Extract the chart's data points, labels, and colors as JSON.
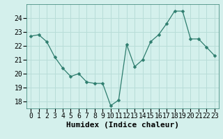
{
  "x": [
    0,
    1,
    2,
    3,
    4,
    5,
    6,
    7,
    8,
    9,
    10,
    11,
    12,
    13,
    14,
    15,
    16,
    17,
    18,
    19,
    20,
    21,
    22,
    23
  ],
  "y": [
    22.7,
    22.8,
    22.3,
    21.2,
    20.4,
    19.8,
    20.0,
    19.4,
    19.3,
    19.3,
    17.7,
    18.1,
    22.1,
    20.5,
    21.0,
    22.3,
    22.8,
    23.6,
    24.5,
    24.5,
    22.5,
    22.5,
    21.9,
    21.3
  ],
  "xlabel": "Humidex (Indice chaleur)",
  "ylim": [
    17.5,
    25.0
  ],
  "xlim": [
    -0.5,
    23.5
  ],
  "yticks": [
    18,
    19,
    20,
    21,
    22,
    23,
    24
  ],
  "xtick_labels": [
    "0",
    "1",
    "2",
    "3",
    "4",
    "5",
    "6",
    "7",
    "8",
    "9",
    "10",
    "11",
    "12",
    "13",
    "14",
    "15",
    "16",
    "17",
    "18",
    "19",
    "20",
    "21",
    "22",
    "23"
  ],
  "line_color": "#2e7d6e",
  "marker_color": "#2e7d6e",
  "bg_color": "#d4f0ec",
  "grid_color": "#b8ddd8",
  "xlabel_fontsize": 8,
  "tick_fontsize": 7,
  "marker_size": 2.5
}
